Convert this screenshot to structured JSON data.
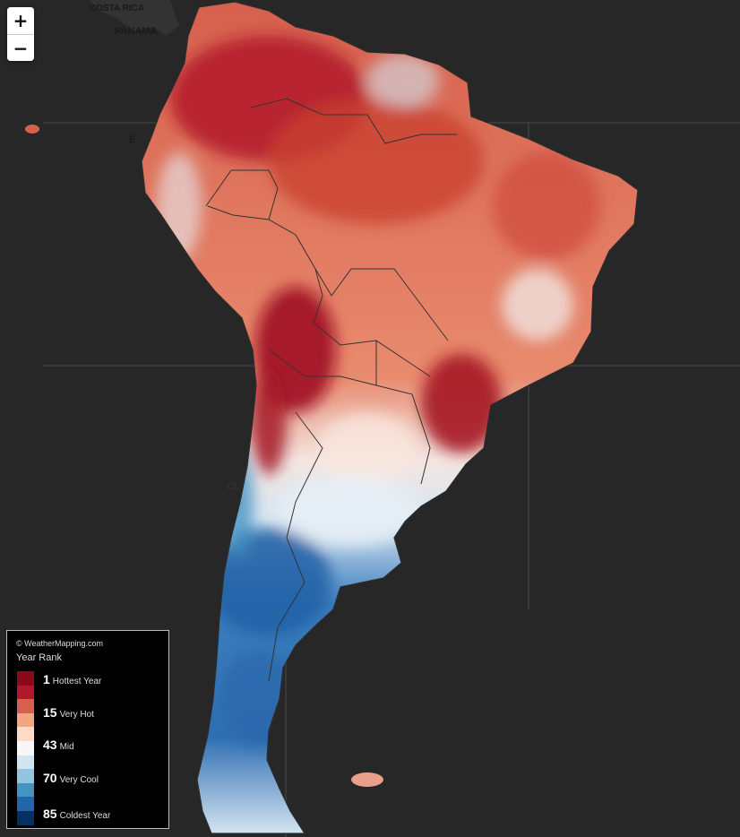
{
  "map": {
    "zoom_in_label": "+",
    "zoom_out_label": "−",
    "place_labels": [
      {
        "text": "COSTA RICA"
      },
      {
        "text": "PANAMA"
      },
      {
        "text": "E"
      },
      {
        "text": "CL"
      }
    ]
  },
  "legend": {
    "credit": "© WeatherMapping.com",
    "title": "Year Rank",
    "swatches": [
      "#8b0a1a",
      "#b2182b",
      "#d6604d",
      "#f4a582",
      "#fddbc7",
      "#f7f7f7",
      "#d1e5f0",
      "#92c5de",
      "#4393c3",
      "#2166ac",
      "#053061"
    ],
    "entries": [
      {
        "rank": "1",
        "label": "Hottest Year"
      },
      {
        "rank": "15",
        "label": "Very Hot"
      },
      {
        "rank": "43",
        "label": "Mid"
      },
      {
        "rank": "70",
        "label": "Very Cool"
      },
      {
        "rank": "85",
        "label": "Coldest Year"
      }
    ]
  }
}
